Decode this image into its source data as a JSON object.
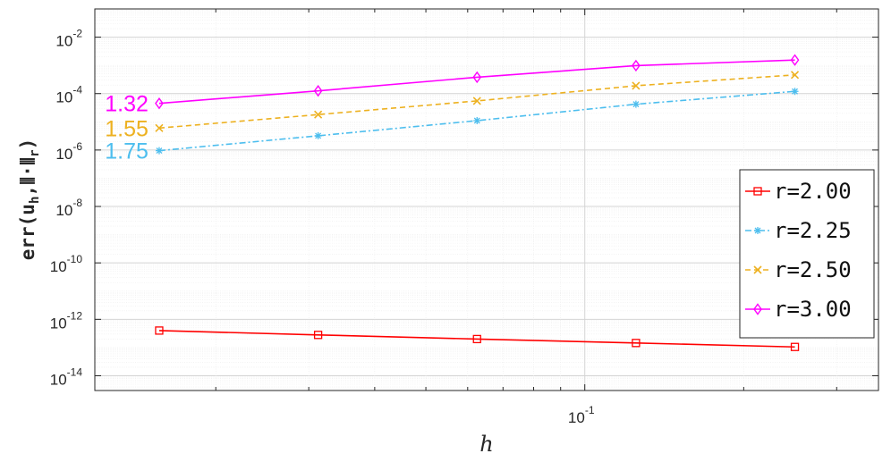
{
  "chart_data": {
    "type": "line",
    "x_scale": "log",
    "y_scale": "log",
    "xlim": [
      0.0118,
      0.36
    ],
    "ylim": [
      3e-15,
      0.1
    ],
    "grid": true,
    "xlabel": "h",
    "ylabel": "err(u_h, ⦀·⦀_r)",
    "ylabel_parts": {
      "prefix": "err(u",
      "sub1": "h",
      "middle": ",⦀·⦀",
      "sub2": "r",
      "suffix": ")"
    },
    "x_ticks": [
      {
        "base": "10",
        "exp": "-1",
        "value": 0.1
      }
    ],
    "y_ticks": [
      {
        "base": "10",
        "exp": "-2",
        "value": 0.01
      },
      {
        "base": "10",
        "exp": "-4",
        "value": 0.0001
      },
      {
        "base": "10",
        "exp": "-6",
        "value": 1e-06
      },
      {
        "base": "10",
        "exp": "-8",
        "value": 1e-08
      },
      {
        "base": "10",
        "exp": "-10",
        "value": 1e-10
      },
      {
        "base": "10",
        "exp": "-12",
        "value": 1e-12
      },
      {
        "base": "10",
        "exp": "-14",
        "value": 1e-14
      }
    ],
    "x": [
      0.015625,
      0.03125,
      0.0625,
      0.125,
      0.25
    ],
    "series": [
      {
        "name": "r=2.00",
        "color": "#ff0000",
        "dash": "solid",
        "marker": "square",
        "values": [
          4e-13,
          2.8e-13,
          2e-13,
          1.45e-13,
          1.05e-13
        ]
      },
      {
        "name": "r=2.25",
        "color": "#4dbeee",
        "dash": "dashdot",
        "marker": "asterisk",
        "values": [
          9.5e-07,
          3.2e-06,
          1.1e-05,
          4.2e-05,
          0.00012
        ]
      },
      {
        "name": "r=2.50",
        "color": "#edb120",
        "dash": "dashed",
        "marker": "x",
        "values": [
          6e-06,
          1.8e-05,
          5.5e-05,
          0.00019,
          0.00046
        ]
      },
      {
        "name": "r=3.00",
        "color": "#ff00ff",
        "dash": "solid",
        "marker": "diamond",
        "values": [
          4.5e-05,
          0.000125,
          0.00038,
          0.00098,
          0.00155
        ]
      }
    ],
    "annotations": [
      {
        "text": "1.32",
        "color": "#ff00ff",
        "series": "r=3.00"
      },
      {
        "text": "1.55",
        "color": "#edb120",
        "series": "r=2.50"
      },
      {
        "text": "1.75",
        "color": "#4dbeee",
        "series": "r=2.25"
      }
    ],
    "legend_position": "right"
  }
}
